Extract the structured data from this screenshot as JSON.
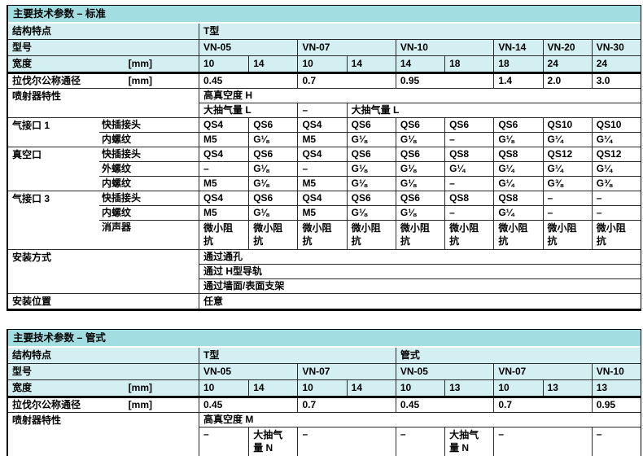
{
  "colors": {
    "title_bar_bg": "#a2dde1",
    "header_row_bg": "#d4eff1",
    "border_thin": "#2a2a2a",
    "border_thick": "#000000"
  },
  "labels": {
    "structure": "结构特点",
    "model": "型号",
    "width": "宽度",
    "unit_mm": "[mm]",
    "laval": "拉伐尔公称通径",
    "ejector": "喷射器特性",
    "port1": "气接口 1",
    "vacuum": "真空口",
    "port3": "气接口 3",
    "push_in": "快插接头",
    "female_thread": "内螺纹",
    "male_thread": "外螺纹",
    "silencer": "消声器",
    "mounting": "安装方式",
    "position": "安装位置"
  },
  "t1": {
    "title": "主要技术参数 – 标准",
    "structure_value": "T型",
    "models": [
      "VN-05",
      "VN-07",
      "VN-10",
      "VN-14",
      "VN-20",
      "VN-30"
    ],
    "widths": [
      "10",
      "14",
      "10",
      "14",
      "14",
      "18",
      "18",
      "24",
      "24"
    ],
    "laval": [
      "0.45",
      "0.7",
      "0.95",
      "1.4",
      "2.0",
      "3.0"
    ],
    "ejector_high_vacuum": "高真空度 H",
    "ejector_flow": [
      "大抽气量 L",
      "–",
      "大抽气量 L"
    ],
    "port1_push_in": [
      "QS4",
      "QS6",
      "QS4",
      "QS6",
      "QS6",
      "QS6",
      "QS6",
      "QS10",
      "QS10"
    ],
    "port1_female": [
      "M5",
      "G⅛",
      "M5",
      "G⅛",
      "G⅛",
      "–",
      "G⅛",
      "G¼",
      "G¼"
    ],
    "vacuum_push_in": [
      "QS4",
      "QS6",
      "QS4",
      "QS6",
      "QS6",
      "QS8",
      "QS8",
      "QS12",
      "QS12"
    ],
    "vacuum_male": [
      "–",
      "G⅛",
      "–",
      "G⅛",
      "G⅛",
      "G¼",
      "G¼",
      "G¼",
      "G¼"
    ],
    "vacuum_female": [
      "M5",
      "G⅛",
      "M5",
      "G⅛",
      "G⅛",
      "–",
      "G¼",
      "G⅜",
      "G⅜"
    ],
    "port3_push_in": [
      "QS4",
      "QS6",
      "QS4",
      "QS6",
      "QS6",
      "QS8",
      "QS8",
      "–",
      "–"
    ],
    "port3_female": [
      "M5",
      "G⅛",
      "M5",
      "G⅛",
      "G⅛",
      "–",
      "G¼",
      "–",
      "–"
    ],
    "silencer_values": [
      "微小阻抗",
      "微小阻抗",
      "微小阻抗",
      "微小阻抗",
      "微小阻抗",
      "微小阻抗",
      "微小阻抗",
      "微小阻抗",
      "微小阻抗"
    ],
    "mounting_options": [
      "通过通孔",
      "通过 H型导轨",
      "通过墙面/表面支架"
    ],
    "position_value": "任意"
  },
  "t2": {
    "title": "主要技术参数 – 管式",
    "structure_values": [
      "T型",
      "管式"
    ],
    "models": [
      "VN-05",
      "VN-07",
      "VN-05",
      "VN-07",
      "VN-10"
    ],
    "widths": [
      "10",
      "14",
      "10",
      "14",
      "10",
      "13",
      "10",
      "13",
      "13"
    ],
    "laval": [
      "0.45",
      "0.7",
      "0.45",
      "0.7",
      "0.95"
    ],
    "ejector_high_vacuum": "高真空度 M",
    "ejector_flow": [
      "–",
      "大抽气量 N",
      "–",
      "–",
      "大抽气量 N",
      "–",
      "–"
    ]
  }
}
